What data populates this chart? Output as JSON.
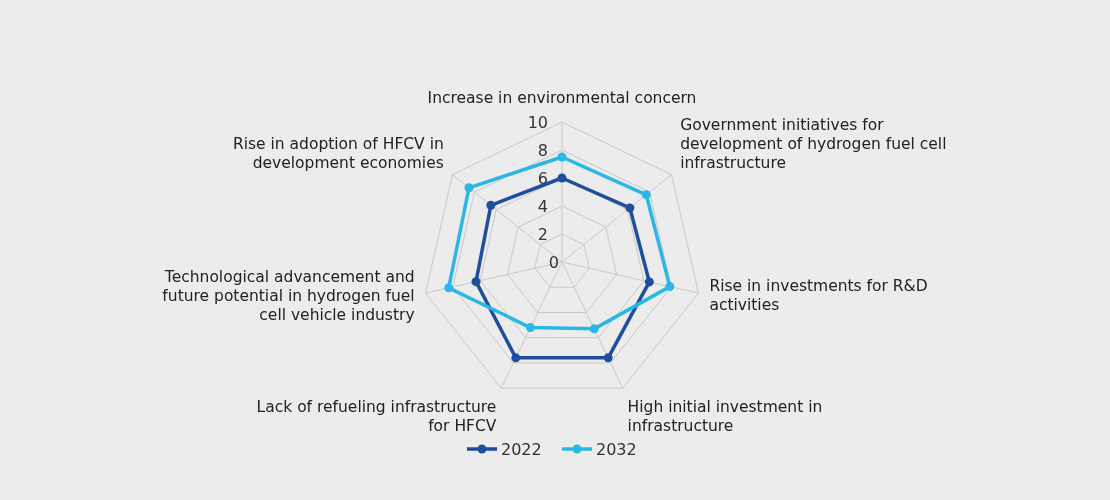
{
  "chart_data": {
    "type": "radar",
    "categories": [
      "Increase in environmental concern",
      "Government initiatives for development of hydrogen fuel cell infrastructure",
      "Rise in investments for R&D activities",
      "High initial investment in infrastructure",
      "Lack of refueling infrastructure for HFCV",
      "Technological advancement and future potential in hydrogen fuel cell vehicle industry",
      "Rise in adoption of HFCV in development economies"
    ],
    "series": [
      {
        "name": "2022",
        "color": "#1f4e9e",
        "values": [
          6,
          6.2,
          6.4,
          7.6,
          7.6,
          6.3,
          6.5
        ]
      },
      {
        "name": "2032",
        "color": "#2bb7e6",
        "values": [
          7.5,
          7.7,
          7.9,
          5.3,
          5.2,
          8.3,
          8.5
        ]
      }
    ],
    "ylim": [
      0,
      10
    ],
    "yticks": [
      0,
      2,
      4,
      6,
      8,
      10
    ],
    "grid": true,
    "legend": "bottom",
    "marker": "circle"
  }
}
